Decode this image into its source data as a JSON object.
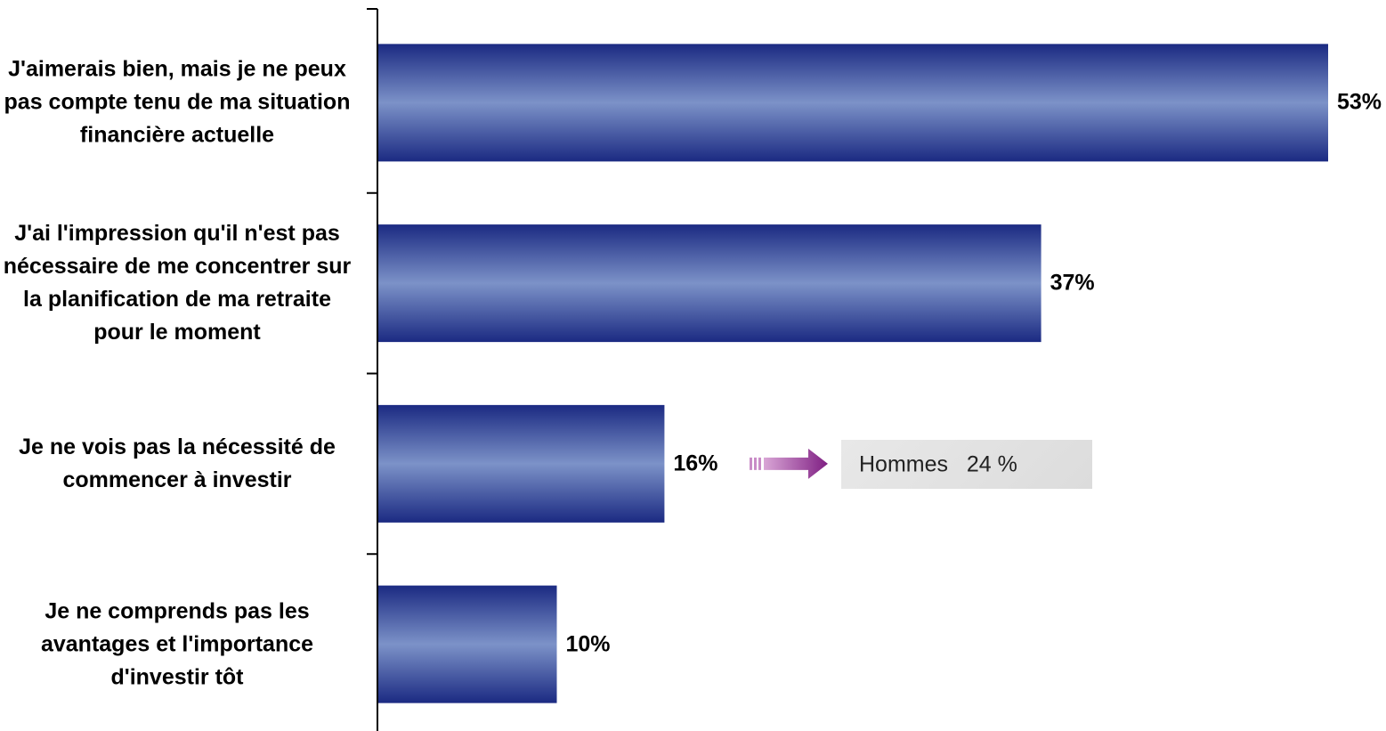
{
  "chart_data": {
    "type": "bar",
    "orientation": "horizontal",
    "categories": [
      "J'aimerais bien, mais je ne peux pas compte tenu de ma situation financière actuelle",
      "J'ai l'impression qu'il n'est pas nécessaire de me concentrer sur la planification de ma retraite pour le moment",
      "Je ne vois pas la nécessité de commencer à investir",
      "Je ne comprends pas les avantages et l'importance d'investir tôt"
    ],
    "values": [
      53,
      37,
      16,
      10
    ],
    "value_labels": [
      "53%",
      "37%",
      "16%",
      "10%"
    ],
    "xlim": [
      0,
      53
    ],
    "grid": false,
    "annotations": [
      {
        "category_index": 2,
        "text": "Hommes   24 %",
        "arrow_color": "#8b2a8e"
      }
    ],
    "colors": {
      "bar_edge": "#1b2a82",
      "bar_center": "#7c92c8",
      "axis": "#000000",
      "callout_bg": "#e0e0e0"
    }
  }
}
